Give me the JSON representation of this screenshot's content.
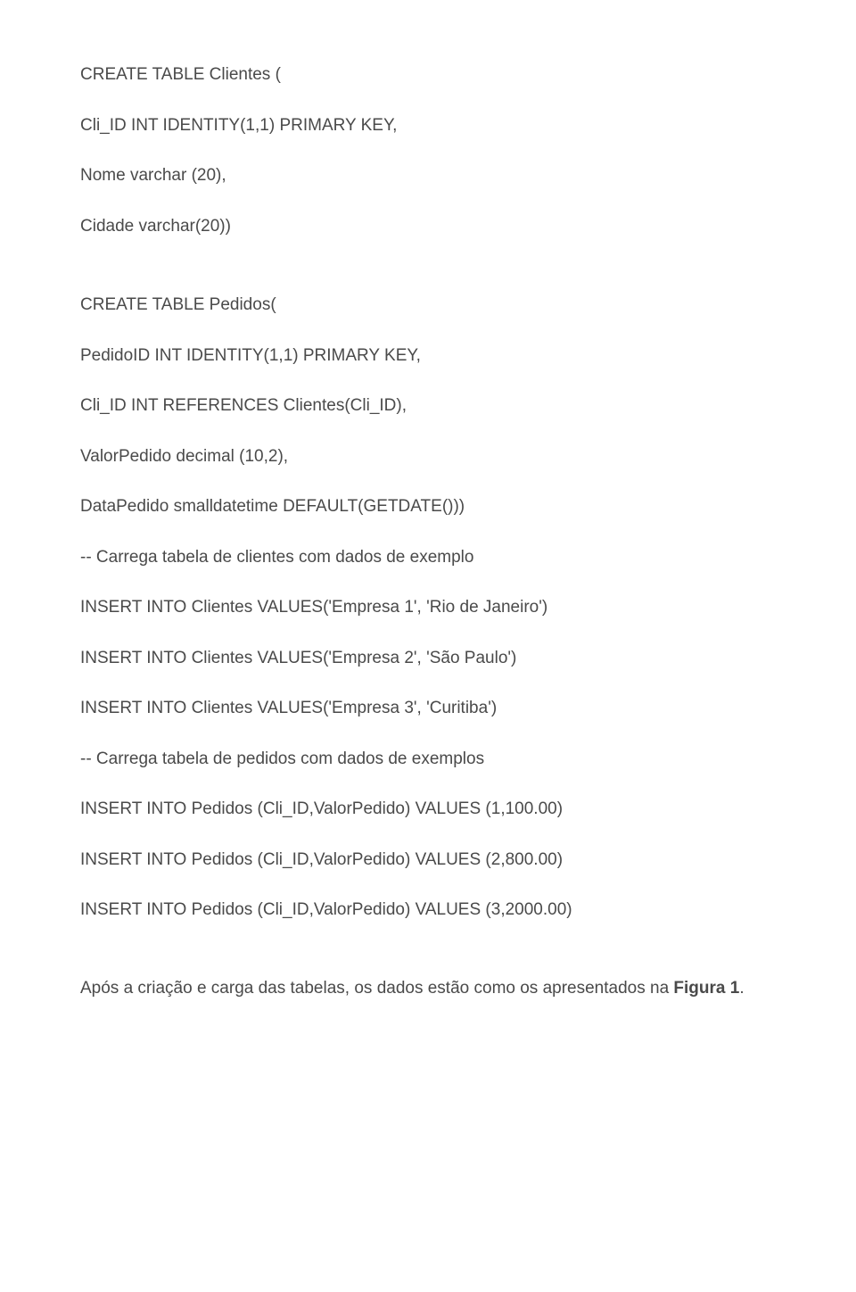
{
  "lines": {
    "l1": "CREATE TABLE Clientes (",
    "l2": "Cli_ID INT IDENTITY(1,1) PRIMARY KEY,",
    "l3": "Nome varchar (20),",
    "l4": "Cidade varchar(20))",
    "l5": "CREATE TABLE Pedidos(",
    "l6": "PedidoID INT IDENTITY(1,1) PRIMARY KEY,",
    "l7": "Cli_ID INT REFERENCES Clientes(Cli_ID),",
    "l8": "ValorPedido decimal (10,2),",
    "l9": "DataPedido smalldatetime DEFAULT(GETDATE()))",
    "l10": "-- Carrega tabela de clientes com dados de exemplo",
    "l11": "INSERT INTO Clientes VALUES('Empresa 1', 'Rio de Janeiro')",
    "l12": "INSERT INTO Clientes VALUES('Empresa 2', 'São Paulo')",
    "l13": "INSERT INTO Clientes VALUES('Empresa 3', 'Curitiba')",
    "l14": "-- Carrega tabela de pedidos com dados de exemplos",
    "l15": "INSERT INTO Pedidos (Cli_ID,ValorPedido) VALUES (1,100.00)",
    "l16": "INSERT INTO Pedidos (Cli_ID,ValorPedido) VALUES (2,800.00)",
    "l17": "INSERT INTO Pedidos (Cli_ID,ValorPedido) VALUES (3,2000.00)"
  },
  "footer": {
    "prefix": "Após a criação e carga das tabelas, os dados estão como os apresentados na ",
    "bold": "Figura 1",
    "suffix": "."
  }
}
